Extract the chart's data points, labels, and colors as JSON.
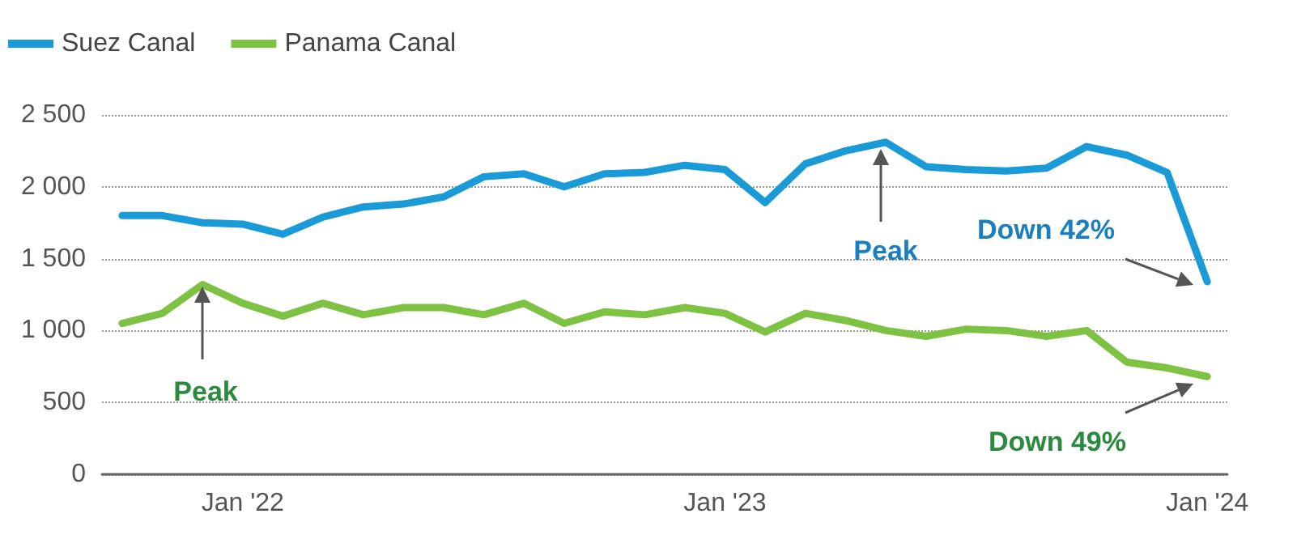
{
  "chart_data": {
    "type": "line",
    "categories": [
      null,
      null,
      null,
      "Jan '22",
      null,
      null,
      null,
      null,
      null,
      null,
      null,
      null,
      null,
      null,
      null,
      "Jan '23",
      null,
      null,
      null,
      null,
      null,
      null,
      null,
      null,
      null,
      null,
      null,
      "Jan '24"
    ],
    "series": [
      {
        "name": "Suez Canal",
        "color": "#1a9bd7",
        "values": [
          1800,
          1800,
          1750,
          1740,
          1670,
          1790,
          1860,
          1880,
          1930,
          2070,
          2090,
          2000,
          2090,
          2100,
          2150,
          2120,
          1890,
          2160,
          2250,
          2310,
          2140,
          2120,
          2110,
          2130,
          2280,
          2220,
          2100,
          1340
        ]
      },
      {
        "name": "Panama Canal",
        "color": "#7dc242",
        "values": [
          1050,
          1120,
          1320,
          1190,
          1100,
          1190,
          1110,
          1160,
          1160,
          1110,
          1190,
          1050,
          1130,
          1110,
          1160,
          1120,
          990,
          1120,
          1070,
          1000,
          960,
          1010,
          1000,
          960,
          1000,
          780,
          740,
          680
        ]
      }
    ],
    "ylim": [
      0,
      2500
    ],
    "yticks": [
      0,
      500,
      {
        "value": 1000,
        "label": "1 000"
      },
      {
        "value": 1500,
        "label": "1 500"
      },
      {
        "value": 2000,
        "label": "2 000"
      },
      {
        "value": 2500,
        "label": "2 500"
      }
    ],
    "grid": "y",
    "legend": "top left",
    "marker": "none",
    "line_style": "solid",
    "annotations": [
      "Peak",
      "Peak",
      "Down 42%",
      "Down 49%"
    ]
  }
}
